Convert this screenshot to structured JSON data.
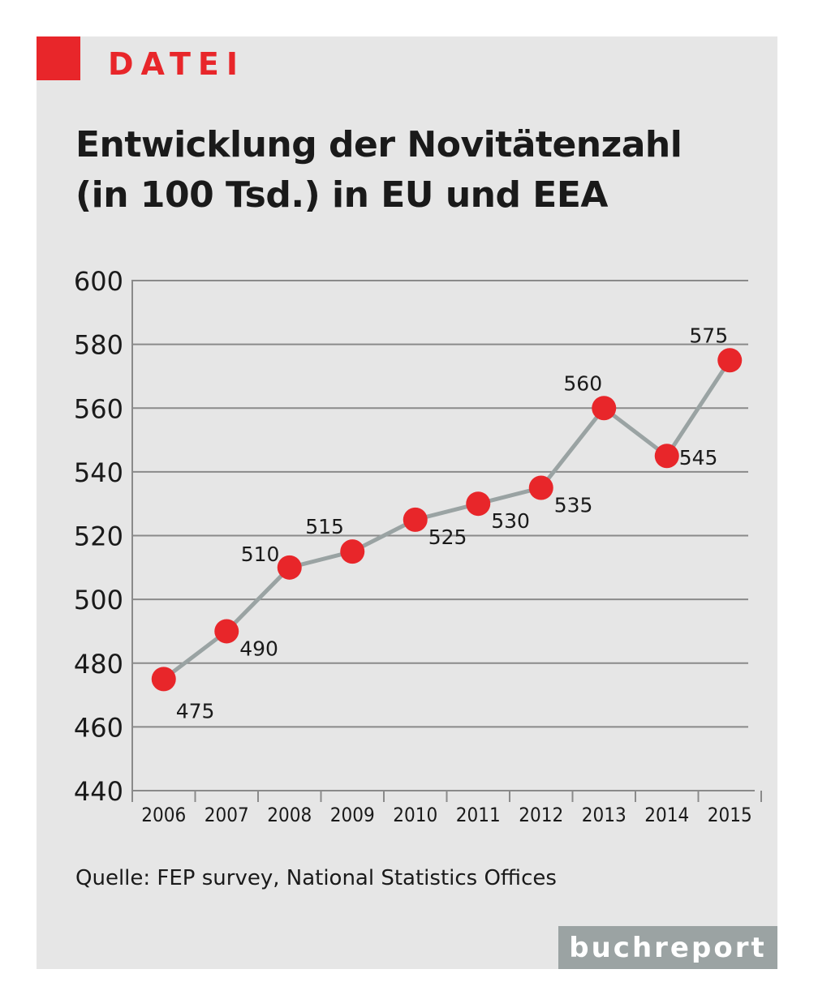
{
  "header": {
    "kicker": "DATEI",
    "title_line1": "Entwicklung der Novitätenzahl",
    "title_line2": "(in 100 Tsd.) in EU und EEA"
  },
  "colors": {
    "accent": "#e8262a",
    "panel": "#e6e6e6",
    "line": "#9aa3a3",
    "grid": "#8a8a8a"
  },
  "chart_data": {
    "type": "line",
    "title": "Entwicklung der Novitätenzahl (in 100 Tsd.) in EU und EEA",
    "xlabel": "",
    "ylabel": "",
    "categories": [
      "2006",
      "2007",
      "2008",
      "2009",
      "2010",
      "2011",
      "2012",
      "2013",
      "2014",
      "2015"
    ],
    "series": [
      {
        "values": [
          475,
          490,
          510,
          515,
          525,
          530,
          535,
          560,
          545,
          575
        ]
      }
    ],
    "data_labels": [
      "475",
      "490",
      "510",
      "515",
      "525",
      "530",
      "535",
      "560",
      "545",
      "575"
    ],
    "ylim": [
      440,
      600
    ],
    "yticks": [
      440,
      460,
      480,
      500,
      520,
      540,
      560,
      580,
      600
    ],
    "ytick_labels": [
      "440",
      "460",
      "480",
      "500",
      "520",
      "540",
      "560",
      "580",
      "600"
    ],
    "grid": true,
    "legend": "none"
  },
  "footer": {
    "source": "Quelle: FEP survey, National Statistics Offices",
    "brand": "buchreport"
  }
}
